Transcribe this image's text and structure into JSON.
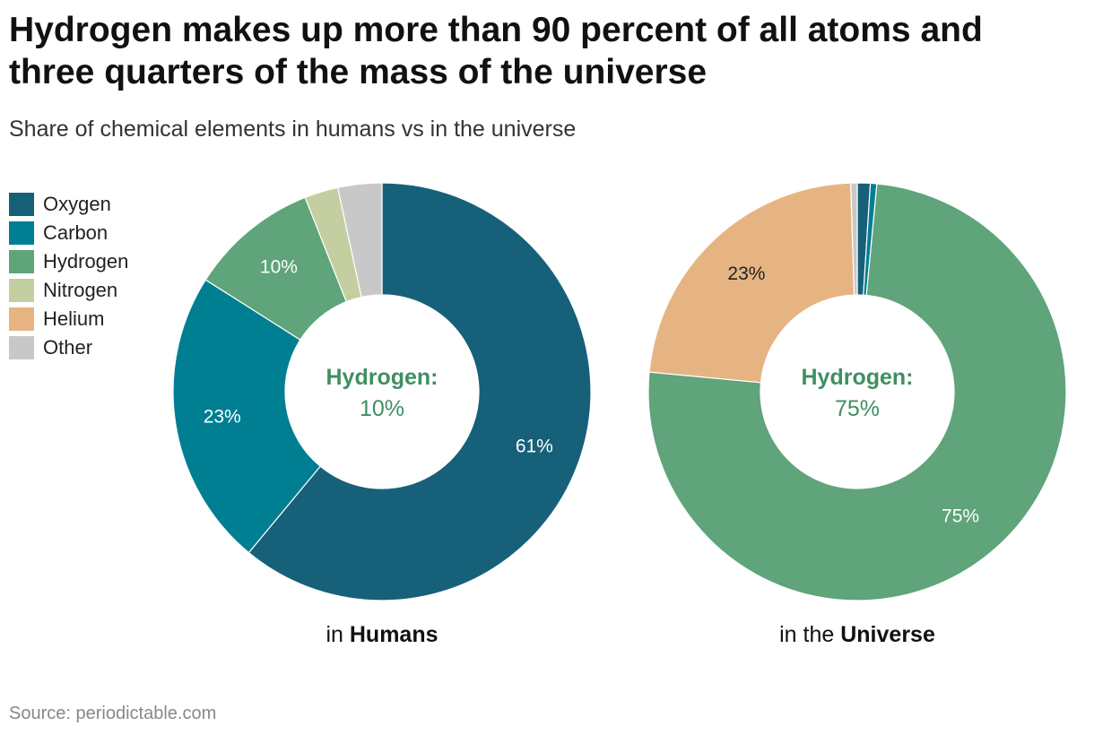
{
  "title": "Hydrogen makes up more than 90 percent of all atoms and three quarters of the mass of the universe",
  "subtitle": "Share of chemical elements in humans vs in the universe",
  "source": "Source: periodictable.com",
  "legend": [
    {
      "label": "Oxygen",
      "color": "#176079"
    },
    {
      "label": "Carbon",
      "color": "#007f92"
    },
    {
      "label": "Hydrogen",
      "color": "#5fa47a"
    },
    {
      "label": "Nitrogen",
      "color": "#c4cfa1"
    },
    {
      "label": "Helium",
      "color": "#e6b483"
    },
    {
      "label": "Other",
      "color": "#c8c8c8"
    }
  ],
  "chart_data": [
    {
      "type": "pie",
      "name": "humans",
      "caption_prefix": "in ",
      "caption_bold": "Humans",
      "center_label": "Hydrogen:",
      "center_value": "10%",
      "center_color": "#3f8f62",
      "slices": [
        {
          "label": "Oxygen",
          "value": 61,
          "display": "61%",
          "label_color": "#ffffff"
        },
        {
          "label": "Carbon",
          "value": 23,
          "display": "23%",
          "label_color": "#ffffff"
        },
        {
          "label": "Hydrogen",
          "value": 10,
          "display": "10%",
          "label_color": "#ffffff"
        },
        {
          "label": "Nitrogen",
          "value": 2.6,
          "display": "",
          "label_color": "#ffffff"
        },
        {
          "label": "Other",
          "value": 3.4,
          "display": "",
          "label_color": "#ffffff"
        }
      ]
    },
    {
      "type": "pie",
      "name": "universe",
      "caption_prefix": "in the ",
      "caption_bold": "Universe",
      "center_label": "Hydrogen:",
      "center_value": "75%",
      "center_color": "#3f8f62",
      "slices": [
        {
          "label": "Oxygen",
          "value": 1.0,
          "display": "",
          "label_color": "#ffffff"
        },
        {
          "label": "Carbon",
          "value": 0.5,
          "display": "",
          "label_color": "#ffffff"
        },
        {
          "label": "Hydrogen",
          "value": 75,
          "display": "75%",
          "label_color": "#ffffff"
        },
        {
          "label": "Helium",
          "value": 23,
          "display": "23%",
          "label_color": "#222222"
        },
        {
          "label": "Other",
          "value": 0.5,
          "display": "",
          "label_color": "#222222"
        }
      ]
    }
  ]
}
